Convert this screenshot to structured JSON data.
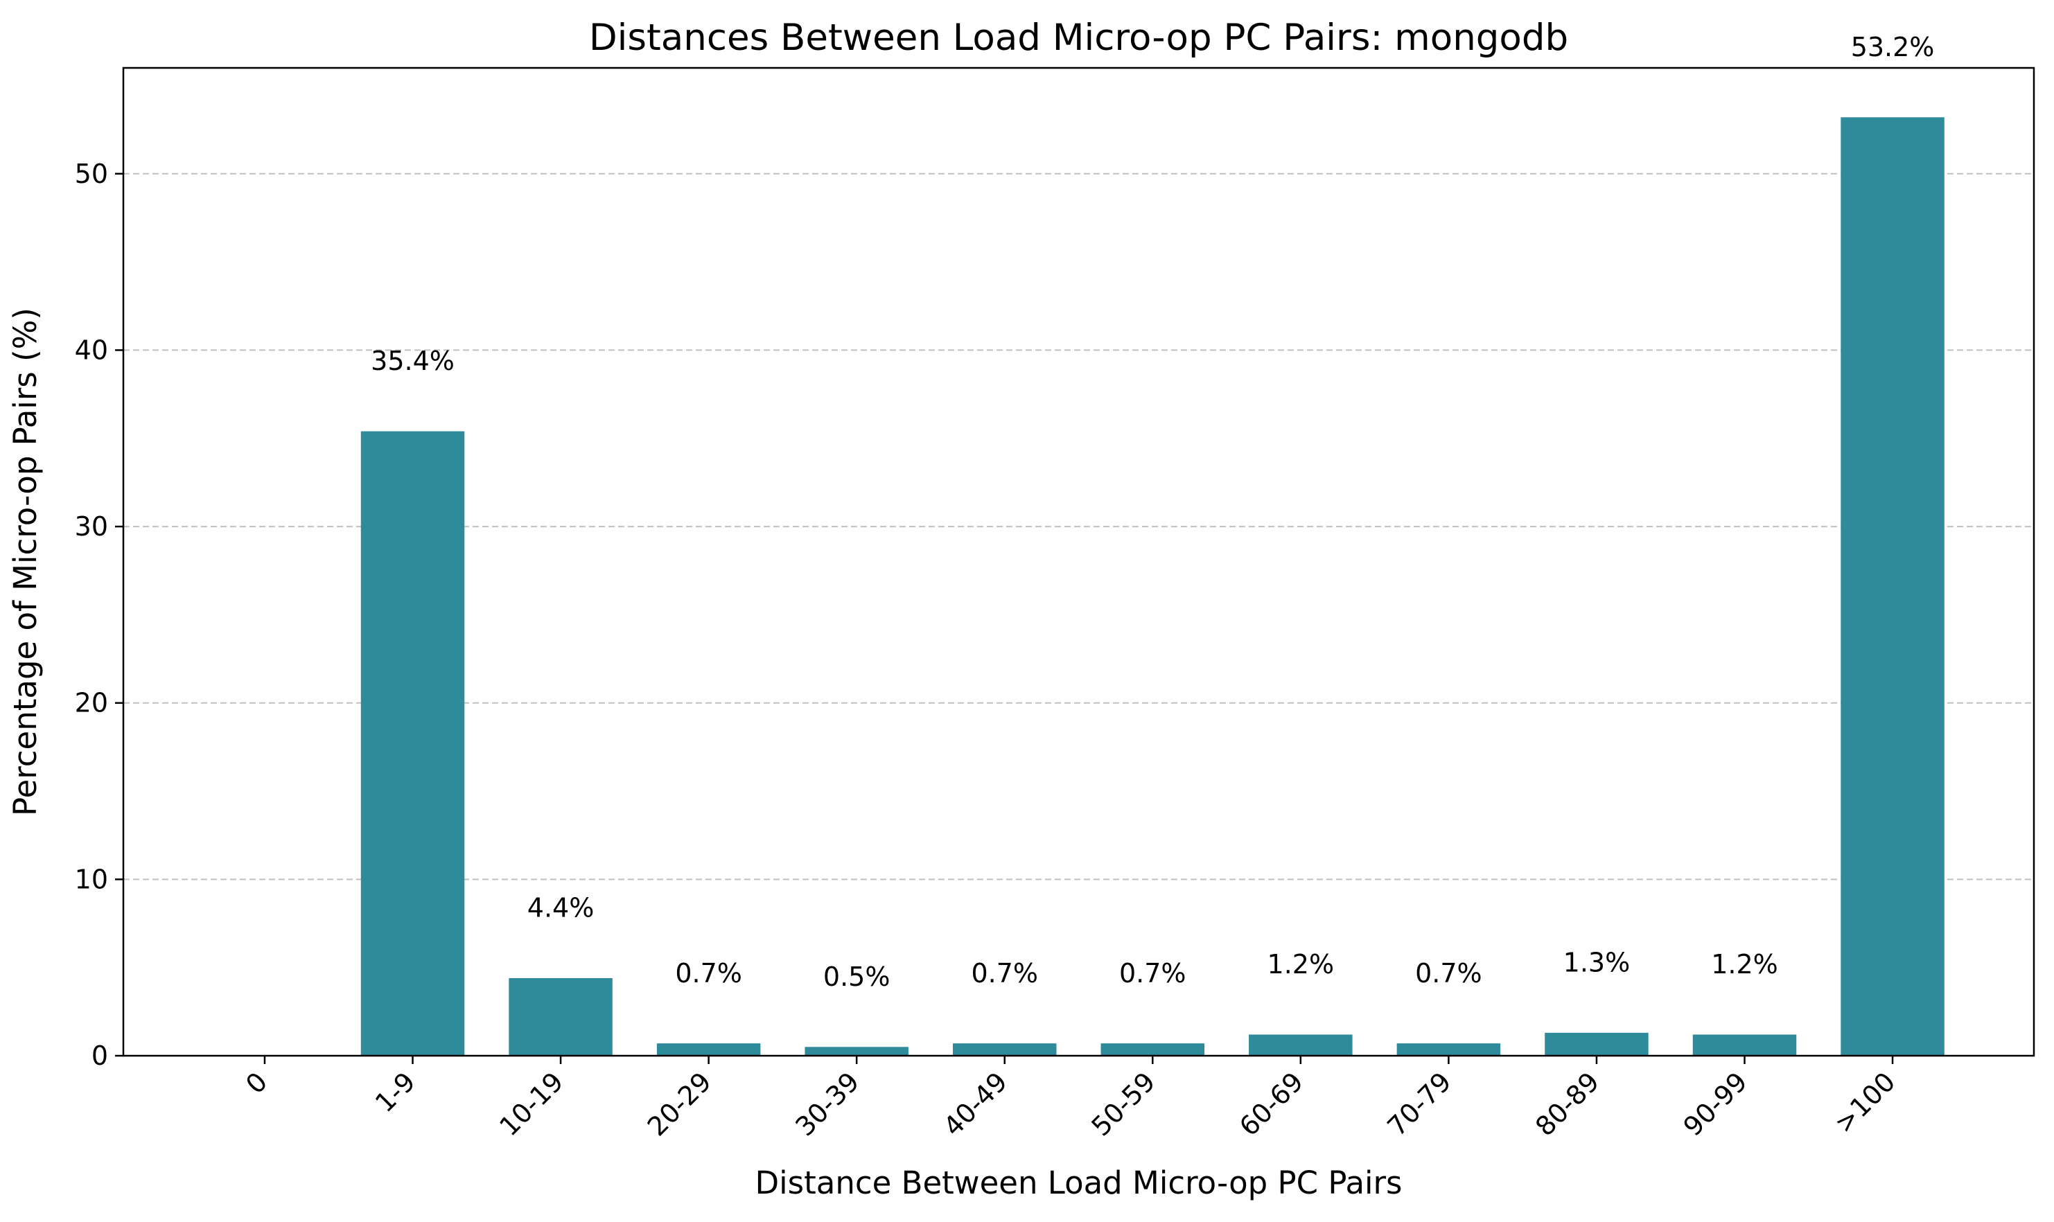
{
  "chart_data": {
    "type": "bar",
    "title": "Distances Between Load Micro-op PC Pairs: mongodb",
    "xlabel": "Distance Between Load Micro-op PC Pairs",
    "ylabel": "Percentage of Micro-op Pairs (%)",
    "categories": [
      "0",
      "1-9",
      "10-19",
      "20-29",
      "30-39",
      "40-49",
      "50-59",
      "60-69",
      "70-79",
      "80-89",
      "90-99",
      ">100"
    ],
    "values": [
      0,
      35.4,
      4.4,
      0.7,
      0.5,
      0.7,
      0.7,
      1.2,
      0.7,
      1.3,
      1.2,
      53.2
    ],
    "data_labels": [
      "",
      "35.4%",
      "4.4%",
      "0.7%",
      "0.5%",
      "0.7%",
      "0.7%",
      "1.2%",
      "0.7%",
      "1.3%",
      "1.2%",
      "53.2%"
    ],
    "ylim": [
      0,
      56
    ],
    "yticks": [
      0,
      10,
      20,
      30,
      40,
      50
    ],
    "ytick_labels": [
      "0",
      "10",
      "20",
      "30",
      "40",
      "50"
    ],
    "grid": "y-dashed",
    "legend": "none",
    "colors": {
      "bar": "#2e8b9a",
      "grid": "#c0c0c0",
      "axis": "#000000",
      "text": "#000000"
    }
  }
}
